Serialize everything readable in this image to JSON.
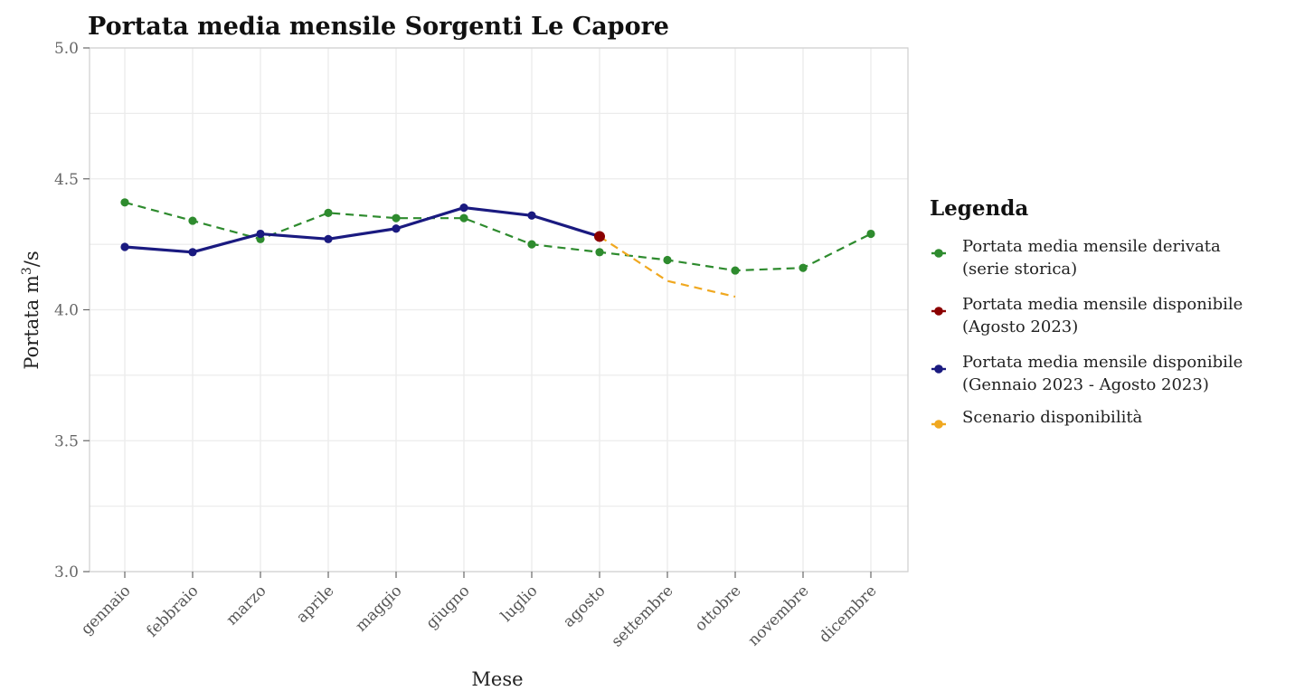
{
  "chart_data": {
    "type": "line",
    "title": "Portata media mensile Sorgenti Le Capore",
    "xlabel": "Mese",
    "ylabel_main": "Portata m",
    "ylabel_sup": "3",
    "ylabel_tail": "/s",
    "categories": [
      "gennaio",
      "febbraio",
      "marzo",
      "aprile",
      "maggio",
      "giugno",
      "luglio",
      "agosto",
      "settembre",
      "ottobre",
      "novembre",
      "dicembre"
    ],
    "ylim": [
      3.0,
      5.0
    ],
    "yticks": [
      "5.0",
      "4.5",
      "4.0",
      "3.5",
      "3.0"
    ],
    "ytick_values": [
      5.0,
      4.5,
      4.0,
      3.5,
      3.0
    ],
    "grid": true,
    "legend_title": "Legenda",
    "legend_position": "right",
    "series": [
      {
        "key": "derivata",
        "legend_lines": [
          "Portata media mensile derivata",
          "(serie storica)"
        ],
        "color": "#2e8b2e",
        "style": "dashed",
        "markers": true,
        "values": [
          4.41,
          4.34,
          4.27,
          4.37,
          4.35,
          4.35,
          4.25,
          4.22,
          4.19,
          4.15,
          4.16,
          4.29
        ]
      },
      {
        "key": "agosto",
        "legend_lines": [
          "Portata media mensile disponibile",
          "(Agosto 2023)"
        ],
        "color": "#8b0000",
        "style": "none",
        "markers": true,
        "values": [
          null,
          null,
          null,
          null,
          null,
          null,
          null,
          4.28,
          null,
          null,
          null,
          null
        ]
      },
      {
        "key": "disponibile",
        "legend_lines": [
          "Portata media mensile disponibile",
          "(Gennaio 2023 - Agosto 2023)"
        ],
        "color": "#1a1a80",
        "style": "solid",
        "markers": true,
        "values": [
          4.24,
          4.22,
          4.29,
          4.27,
          4.31,
          4.39,
          4.36,
          4.28,
          null,
          null,
          null,
          null
        ]
      },
      {
        "key": "scenario",
        "legend_lines": [
          "Scenario disponibilità"
        ],
        "color": "#f0a820",
        "style": "dashed",
        "markers": false,
        "values": [
          null,
          null,
          null,
          null,
          null,
          null,
          null,
          4.28,
          4.11,
          4.05,
          null,
          null
        ]
      }
    ]
  }
}
